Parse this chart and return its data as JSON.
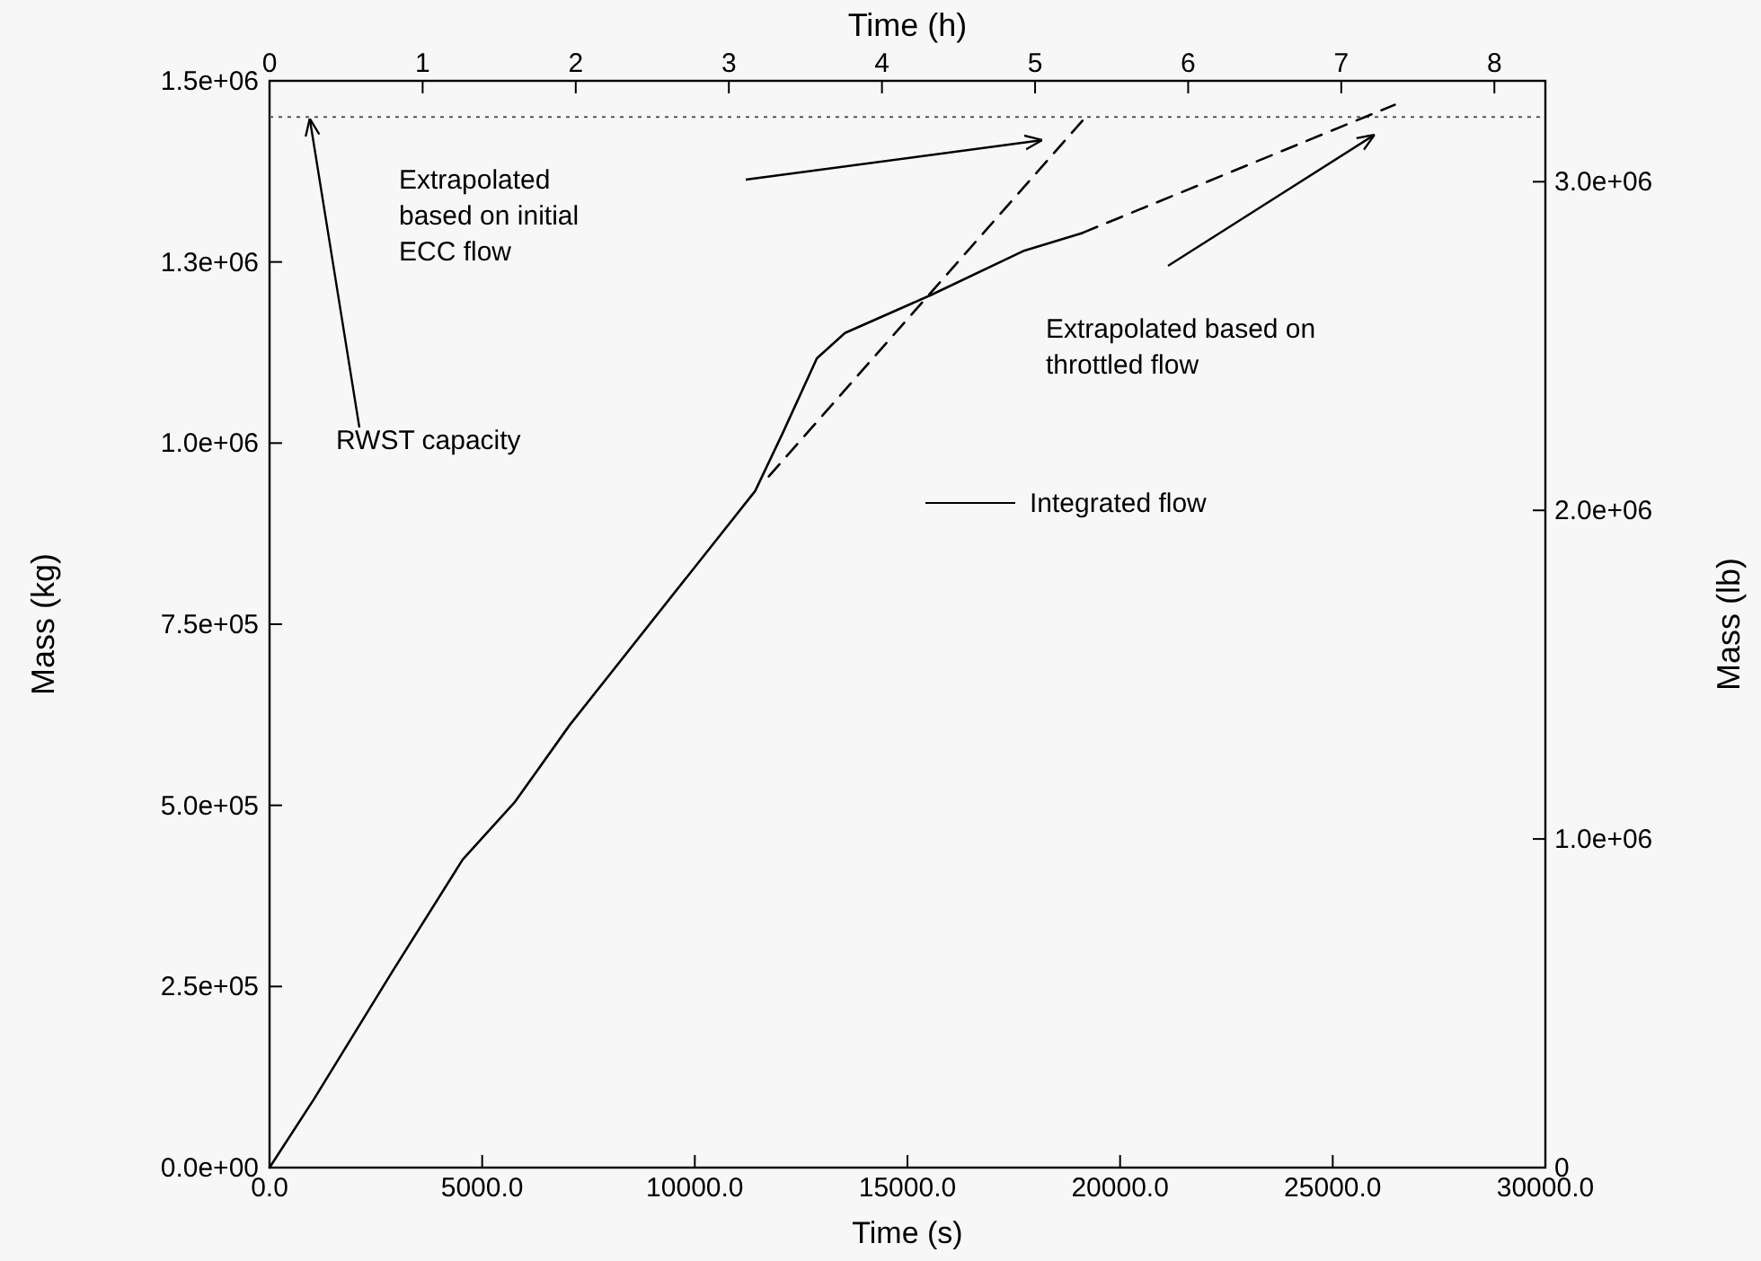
{
  "chart_data": {
    "type": "line",
    "xlabel": "Time (s)",
    "ylabel": "Mass (kg)",
    "y2label": "Mass (lb)",
    "x2label": "Time (h)",
    "xlim": [
      0,
      30000
    ],
    "xticks": [
      {
        "value": 0,
        "label": "0.0"
      },
      {
        "value": 5000,
        "label": "5000.0"
      },
      {
        "value": 10000,
        "label": "10000.0"
      },
      {
        "value": 15000,
        "label": "15000.0"
      },
      {
        "value": 20000,
        "label": "20000.0"
      },
      {
        "value": 25000,
        "label": "25000.0"
      },
      {
        "value": 30000,
        "label": "30000.0"
      }
    ],
    "x2lim": [
      0,
      8.333
    ],
    "x2ticks": [
      0,
      1,
      2,
      3,
      4,
      5,
      6,
      7,
      8
    ],
    "ylim": [
      0,
      1500000
    ],
    "yticks": [
      {
        "value": 0,
        "label": "0.0e+00"
      },
      {
        "value": 250000,
        "label": "2.5e+05"
      },
      {
        "value": 500000,
        "label": "5.0e+05"
      },
      {
        "value": 750000,
        "label": "7.5e+05"
      },
      {
        "value": 1000000,
        "label": "1.0e+06"
      },
      {
        "value": 1250000,
        "label": "1.3e+06"
      },
      {
        "value": 1500000,
        "label": "1.5e+06"
      }
    ],
    "y2lim": [
      0,
      3307000
    ],
    "y2ticks": [
      0,
      {
        "value": 1000000,
        "label": "1.0e+06"
      },
      {
        "value": 2000000,
        "label": "2.0e+06"
      },
      {
        "value": 3000000,
        "label": "3.0e+06"
      }
    ],
    "legend": "center",
    "grid": false,
    "series": [
      {
        "name": "Integrated flow",
        "color": "#000000",
        "line_style": "solid",
        "x": [
          0,
          1050,
          2860,
          4540,
          5760,
          7060,
          11420,
          12060,
          12870,
          13530,
          15540,
          17720,
          19110
        ],
        "values": [
          0,
          95000,
          268000,
          425000,
          504000,
          611000,
          934000,
          1013000,
          1117000,
          1152000,
          1204000,
          1265000,
          1290000
        ]
      },
      {
        "color": "#000000",
        "line_style": "dashed",
        "x": [
          11740,
          19220
        ],
        "values": [
          954000,
          1452000
        ]
      },
      {
        "color": "#000000",
        "line_style": "dashed",
        "x": [
          19110,
          26460
        ],
        "values": [
          1290000,
          1467000
        ]
      }
    ],
    "ref_lines": [
      {
        "axis": "y",
        "value": 1450000,
        "color": "#555555",
        "line_style": "dotted"
      }
    ],
    "annotations": [
      {
        "text": "RWST capacity",
        "x": 945,
        "y": 1448000
      },
      "Extrapolated\nbased on initial\nECC flow",
      "Extrapolated based on\nthrottled flow"
    ]
  }
}
